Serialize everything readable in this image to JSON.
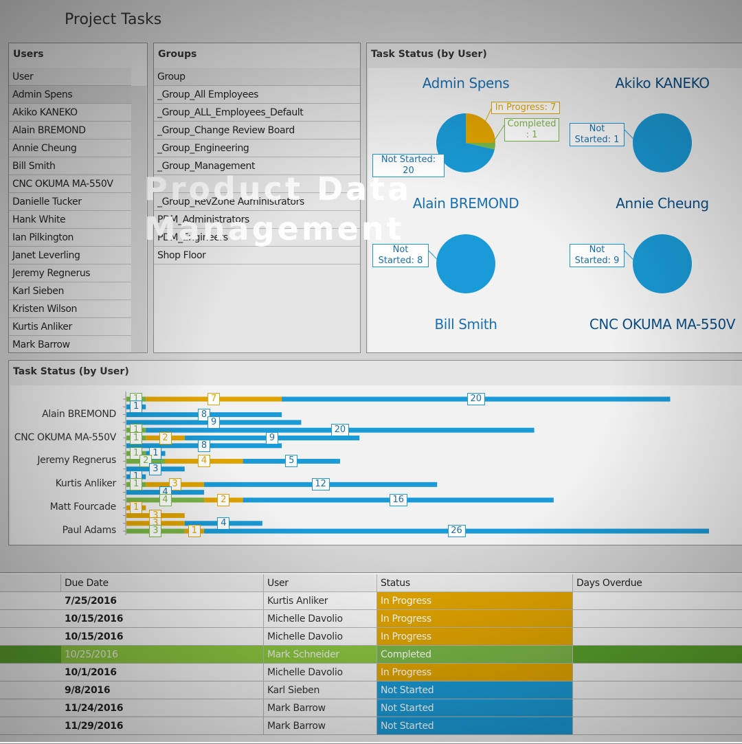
{
  "header": {
    "title": "Project Tasks",
    "overlay": "Product Data Management"
  },
  "users": {
    "title": "Users",
    "column": "User",
    "rows": [
      "Admin Spens",
      "Akiko KANEKO",
      "Alain BREMOND",
      "Annie Cheung",
      "Bill Smith",
      "CNC OKUMA MA-550V",
      "Danielle Tucker",
      "Hank White",
      "Ian Pilkington",
      "Janet Leverling",
      "Jeremy Regnerus",
      "Karl Sieben",
      "Kristen Wilson",
      "Kurtis Anliker",
      "Mark Barrow"
    ]
  },
  "groups": {
    "title": "Groups",
    "column": "Group",
    "rows": [
      "_Group_All Employees",
      "_Group_ALL_Employees_Default",
      "_Group_Change Review Board",
      "_Group_Engineering",
      "_Group_Management",
      "_Group_RevZone Administrators",
      "PDM_Administrators",
      "PDM_Engineers",
      "Shop Floor"
    ]
  },
  "chart_data": [
    {
      "type": "pie",
      "title": "Task Status (by User)",
      "categories": [
        "Admin Spens",
        "Akiko KANEKO",
        "Alain BREMOND",
        "Annie Cheung",
        "Bill Smith",
        "CNC OKUMA MA-550V"
      ],
      "series": [
        {
          "name": "In Progress",
          "color": "#e0a400",
          "values": [
            7,
            null,
            null,
            null,
            null,
            null
          ],
          "value_labels": [
            "In Progress: 7",
            null,
            null,
            null,
            null,
            null
          ]
        },
        {
          "name": "Completed",
          "color": "#7ab648",
          "values": [
            1,
            null,
            null,
            null,
            null,
            null
          ],
          "value_labels": [
            "Completed : 1",
            null,
            null,
            null,
            null,
            null
          ]
        },
        {
          "name": "Not Started",
          "color": "#1a9ad6",
          "values": [
            20,
            1,
            8,
            9,
            null,
            null
          ],
          "value_labels": [
            "Not Started: 20",
            "Not Started: 1",
            "Not Started: 8",
            "Not Started: 9",
            null,
            null
          ]
        }
      ]
    },
    {
      "type": "bar",
      "title": "Task Status (by User)",
      "categories": [
        null,
        null,
        "Alain BREMOND",
        null,
        null,
        "CNC OKUMA MA-550V",
        null,
        null,
        "Jeremy Regnerus",
        null,
        null,
        "Kurtis Anliker",
        null,
        null,
        "Matt Fourcade",
        null,
        null,
        "Paul Adams"
      ],
      "xlim": [
        0,
        30
      ],
      "series": [
        {
          "name": "Completed",
          "color": "#7ab648",
          "values": [
            1,
            null,
            null,
            null,
            1,
            1,
            null,
            1,
            2,
            null,
            null,
            1,
            null,
            4,
            null,
            null,
            null,
            3
          ]
        },
        {
          "name": "In Progress",
          "color": "#e0a400",
          "values": [
            7,
            null,
            null,
            null,
            null,
            2,
            null,
            null,
            4,
            null,
            null,
            3,
            null,
            2,
            1,
            3,
            3,
            1
          ]
        },
        {
          "name": "Not Started",
          "color": "#1a9ad6",
          "values": [
            20,
            1,
            8,
            9,
            20,
            9,
            8,
            1,
            5,
            3,
            1,
            12,
            4,
            16,
            null,
            null,
            4,
            26
          ]
        }
      ]
    }
  ],
  "table": {
    "columns": [
      "Due Date",
      "User",
      "Status",
      "Days Overdue"
    ],
    "rows": [
      [
        "7/25/2016",
        "Kurtis Anliker",
        "In Progress"
      ],
      [
        "10/15/2016",
        "Michelle Davolio",
        "In Progress"
      ],
      [
        "10/15/2016",
        "Michelle Davolio",
        "In Progress"
      ],
      [
        "10/25/2016",
        "Mark Schneider",
        "Completed"
      ],
      [
        "10/1/2016",
        "Michelle Davolio",
        "In Progress"
      ],
      [
        "9/8/2016",
        "Karl Sieben",
        "Not Started"
      ],
      [
        "11/24/2016",
        "Mark Barrow",
        "Not Started"
      ],
      [
        "11/29/2016",
        "Mark Barrow",
        "Not Started"
      ]
    ]
  }
}
